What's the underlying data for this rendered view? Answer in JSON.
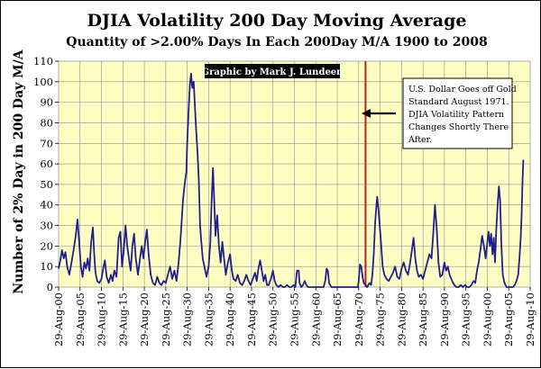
{
  "chart_data": {
    "type": "line",
    "title": "DJIA Volatility 200 Day Moving Average",
    "subtitle": "Quantity of >2.00% Days In Each 200Day M/A 1900 to 2008",
    "ylabel": "Number of 2% Day in 200 Day M/A",
    "xlabel": "",
    "ylim": [
      0,
      110
    ],
    "xlim": [
      1900.0,
      2010.0
    ],
    "grid": true,
    "credit": "Graphic by Mark J. Lundeen",
    "yticks": [
      0,
      10,
      20,
      30,
      40,
      50,
      60,
      70,
      80,
      90,
      100,
      110
    ],
    "xticks": [
      {
        "x": 1900,
        "label": "29-Aug-00"
      },
      {
        "x": 1905,
        "label": "29-Aug-05"
      },
      {
        "x": 1910,
        "label": "29-Aug-10"
      },
      {
        "x": 1915,
        "label": "29-Aug-15"
      },
      {
        "x": 1920,
        "label": "29-Aug-20"
      },
      {
        "x": 1925,
        "label": "29-Aug-25"
      },
      {
        "x": 1930,
        "label": "29-Aug-30"
      },
      {
        "x": 1935,
        "label": "29-Aug-35"
      },
      {
        "x": 1940,
        "label": "29-Aug-40"
      },
      {
        "x": 1945,
        "label": "29-Aug-45"
      },
      {
        "x": 1950,
        "label": "29-Aug-50"
      },
      {
        "x": 1955,
        "label": "29-Aug-55"
      },
      {
        "x": 1960,
        "label": "29-Aug-60"
      },
      {
        "x": 1965,
        "label": "29-Aug-65"
      },
      {
        "x": 1970,
        "label": "29-Aug-70"
      },
      {
        "x": 1975,
        "label": "29-Aug-75"
      },
      {
        "x": 1980,
        "label": "29-Aug-80"
      },
      {
        "x": 1985,
        "label": "29-Aug-85"
      },
      {
        "x": 1990,
        "label": "29-Aug-90"
      },
      {
        "x": 1995,
        "label": "29-Aug-95"
      },
      {
        "x": 2000,
        "label": "29-Aug-00"
      },
      {
        "x": 2005,
        "label": "29-Aug-05"
      },
      {
        "x": 2010,
        "label": "29-Aug-10"
      }
    ],
    "marker_line": {
      "x": 1971.6
    },
    "annotation": {
      "lines": [
        "U.S. Dollar Goes off Gold",
        "Standard August 1971.",
        "DJIA Volatility Pattern",
        "Changes Shortly There",
        "After."
      ]
    },
    "series": [
      {
        "color": "#1f1f8f",
        "points": [
          [
            1900.0,
            9
          ],
          [
            1900.4,
            13
          ],
          [
            1900.8,
            18
          ],
          [
            1901.2,
            14
          ],
          [
            1901.6,
            17
          ],
          [
            1902.0,
            10
          ],
          [
            1902.5,
            6
          ],
          [
            1903.0,
            12
          ],
          [
            1903.5,
            18
          ],
          [
            1904.0,
            25
          ],
          [
            1904.4,
            33
          ],
          [
            1904.8,
            22
          ],
          [
            1905.2,
            10
          ],
          [
            1905.6,
            5
          ],
          [
            1906.0,
            12
          ],
          [
            1906.4,
            9
          ],
          [
            1906.8,
            14
          ],
          [
            1907.2,
            8
          ],
          [
            1907.6,
            22
          ],
          [
            1908.0,
            29
          ],
          [
            1908.3,
            16
          ],
          [
            1908.6,
            7
          ],
          [
            1909.0,
            3
          ],
          [
            1909.5,
            2
          ],
          [
            1910.0,
            4
          ],
          [
            1910.4,
            9
          ],
          [
            1910.8,
            13
          ],
          [
            1911.2,
            5
          ],
          [
            1911.7,
            2
          ],
          [
            1912.2,
            6
          ],
          [
            1912.6,
            3
          ],
          [
            1913.0,
            8
          ],
          [
            1913.5,
            5
          ],
          [
            1914.0,
            24
          ],
          [
            1914.4,
            27
          ],
          [
            1914.8,
            10
          ],
          [
            1915.2,
            18
          ],
          [
            1915.6,
            30
          ],
          [
            1916.0,
            20
          ],
          [
            1916.4,
            14
          ],
          [
            1916.8,
            8
          ],
          [
            1917.2,
            20
          ],
          [
            1917.6,
            26
          ],
          [
            1918.0,
            14
          ],
          [
            1918.5,
            6
          ],
          [
            1919.0,
            14
          ],
          [
            1919.4,
            20
          ],
          [
            1919.8,
            14
          ],
          [
            1920.2,
            22
          ],
          [
            1920.6,
            28
          ],
          [
            1921.0,
            16
          ],
          [
            1921.5,
            6
          ],
          [
            1922.0,
            2
          ],
          [
            1922.5,
            1
          ],
          [
            1923.0,
            5
          ],
          [
            1923.5,
            2
          ],
          [
            1924.0,
            1
          ],
          [
            1924.5,
            3
          ],
          [
            1925.0,
            2
          ],
          [
            1925.5,
            6
          ],
          [
            1926.0,
            10
          ],
          [
            1926.5,
            4
          ],
          [
            1927.0,
            8
          ],
          [
            1927.5,
            3
          ],
          [
            1928.0,
            12
          ],
          [
            1928.4,
            22
          ],
          [
            1928.8,
            35
          ],
          [
            1929.0,
            42
          ],
          [
            1929.2,
            46
          ],
          [
            1929.5,
            52
          ],
          [
            1929.8,
            56
          ],
          [
            1930.0,
            70
          ],
          [
            1930.3,
            85
          ],
          [
            1930.6,
            98
          ],
          [
            1930.9,
            104
          ],
          [
            1931.2,
            97
          ],
          [
            1931.5,
            100
          ],
          [
            1931.8,
            88
          ],
          [
            1932.1,
            76
          ],
          [
            1932.4,
            66
          ],
          [
            1932.7,
            52
          ],
          [
            1933.0,
            30
          ],
          [
            1933.3,
            22
          ],
          [
            1933.6,
            14
          ],
          [
            1934.0,
            10
          ],
          [
            1934.5,
            5
          ],
          [
            1935.0,
            10
          ],
          [
            1935.4,
            22
          ],
          [
            1935.7,
            42
          ],
          [
            1936.0,
            58
          ],
          [
            1936.3,
            42
          ],
          [
            1936.6,
            25
          ],
          [
            1937.0,
            35
          ],
          [
            1937.4,
            20
          ],
          [
            1937.8,
            12
          ],
          [
            1938.2,
            22
          ],
          [
            1938.6,
            14
          ],
          [
            1939.0,
            6
          ],
          [
            1939.5,
            12
          ],
          [
            1940.0,
            16
          ],
          [
            1940.4,
            8
          ],
          [
            1940.8,
            4
          ],
          [
            1941.3,
            3
          ],
          [
            1941.8,
            6
          ],
          [
            1942.3,
            2
          ],
          [
            1942.8,
            1
          ],
          [
            1943.3,
            3
          ],
          [
            1943.8,
            6
          ],
          [
            1944.3,
            3
          ],
          [
            1944.8,
            1
          ],
          [
            1945.3,
            4
          ],
          [
            1945.8,
            7
          ],
          [
            1946.2,
            3
          ],
          [
            1946.6,
            9
          ],
          [
            1947.0,
            13
          ],
          [
            1947.4,
            8
          ],
          [
            1947.8,
            3
          ],
          [
            1948.2,
            6
          ],
          [
            1948.6,
            1
          ],
          [
            1949.0,
            1
          ],
          [
            1949.5,
            4
          ],
          [
            1950.0,
            8
          ],
          [
            1950.4,
            3
          ],
          [
            1950.8,
            1
          ],
          [
            1951.3,
            0
          ],
          [
            1951.8,
            1
          ],
          [
            1952.3,
            0
          ],
          [
            1952.8,
            0
          ],
          [
            1953.3,
            1
          ],
          [
            1953.8,
            0
          ],
          [
            1954.3,
            0
          ],
          [
            1954.8,
            1
          ],
          [
            1955.2,
            0
          ],
          [
            1955.6,
            8
          ],
          [
            1956.0,
            8
          ],
          [
            1956.2,
            2
          ],
          [
            1956.6,
            0
          ],
          [
            1957.0,
            1
          ],
          [
            1957.4,
            3
          ],
          [
            1957.8,
            1
          ],
          [
            1958.2,
            0
          ],
          [
            1958.8,
            0
          ],
          [
            1959.3,
            0
          ],
          [
            1959.8,
            0
          ],
          [
            1960.3,
            0
          ],
          [
            1960.8,
            0
          ],
          [
            1961.3,
            0
          ],
          [
            1961.8,
            0
          ],
          [
            1962.2,
            3
          ],
          [
            1962.5,
            9
          ],
          [
            1962.8,
            8
          ],
          [
            1963.1,
            2
          ],
          [
            1963.6,
            0
          ],
          [
            1964.2,
            0
          ],
          [
            1964.8,
            0
          ],
          [
            1965.3,
            0
          ],
          [
            1965.8,
            0
          ],
          [
            1966.3,
            0
          ],
          [
            1966.8,
            0
          ],
          [
            1967.3,
            0
          ],
          [
            1967.8,
            0
          ],
          [
            1968.3,
            0
          ],
          [
            1968.8,
            0
          ],
          [
            1969.3,
            0
          ],
          [
            1969.8,
            0
          ],
          [
            1970.0,
            3
          ],
          [
            1970.3,
            11
          ],
          [
            1970.6,
            10
          ],
          [
            1970.9,
            5
          ],
          [
            1971.2,
            2
          ],
          [
            1971.6,
            1
          ],
          [
            1972.0,
            0
          ],
          [
            1972.5,
            2
          ],
          [
            1972.9,
            1
          ],
          [
            1973.2,
            6
          ],
          [
            1973.5,
            16
          ],
          [
            1973.8,
            30
          ],
          [
            1974.0,
            36
          ],
          [
            1974.3,
            44
          ],
          [
            1974.6,
            38
          ],
          [
            1974.9,
            30
          ],
          [
            1975.2,
            22
          ],
          [
            1975.6,
            10
          ],
          [
            1976.0,
            6
          ],
          [
            1976.5,
            4
          ],
          [
            1977.0,
            3
          ],
          [
            1977.5,
            5
          ],
          [
            1978.0,
            7
          ],
          [
            1978.5,
            10
          ],
          [
            1979.0,
            5
          ],
          [
            1979.5,
            4
          ],
          [
            1980.0,
            9
          ],
          [
            1980.5,
            12
          ],
          [
            1981.0,
            8
          ],
          [
            1981.5,
            6
          ],
          [
            1982.0,
            12
          ],
          [
            1982.4,
            18
          ],
          [
            1982.8,
            24
          ],
          [
            1983.2,
            14
          ],
          [
            1983.6,
            8
          ],
          [
            1984.0,
            5
          ],
          [
            1984.5,
            6
          ],
          [
            1985.0,
            4
          ],
          [
            1985.5,
            8
          ],
          [
            1986.0,
            12
          ],
          [
            1986.5,
            16
          ],
          [
            1987.0,
            14
          ],
          [
            1987.4,
            26
          ],
          [
            1987.8,
            40
          ],
          [
            1988.2,
            28
          ],
          [
            1988.6,
            12
          ],
          [
            1989.0,
            5
          ],
          [
            1989.5,
            6
          ],
          [
            1990.0,
            12
          ],
          [
            1990.4,
            8
          ],
          [
            1990.8,
            10
          ],
          [
            1991.2,
            6
          ],
          [
            1991.8,
            3
          ],
          [
            1992.3,
            1
          ],
          [
            1992.8,
            0
          ],
          [
            1993.3,
            0
          ],
          [
            1993.8,
            1
          ],
          [
            1994.3,
            0
          ],
          [
            1994.8,
            1
          ],
          [
            1995.3,
            0
          ],
          [
            1995.8,
            0
          ],
          [
            1996.3,
            1
          ],
          [
            1996.8,
            3
          ],
          [
            1997.2,
            2
          ],
          [
            1997.6,
            8
          ],
          [
            1998.0,
            12
          ],
          [
            1998.4,
            18
          ],
          [
            1998.8,
            25
          ],
          [
            1999.2,
            20
          ],
          [
            1999.6,
            14
          ],
          [
            2000.0,
            22
          ],
          [
            2000.3,
            27
          ],
          [
            2000.6,
            20
          ],
          [
            2000.9,
            26
          ],
          [
            2001.2,
            16
          ],
          [
            2001.5,
            24
          ],
          [
            2001.8,
            12
          ],
          [
            2002.1,
            28
          ],
          [
            2002.4,
            40
          ],
          [
            2002.7,
            49
          ],
          [
            2003.0,
            42
          ],
          [
            2003.3,
            20
          ],
          [
            2003.6,
            6
          ],
          [
            2004.0,
            2
          ],
          [
            2004.5,
            0
          ],
          [
            2005.0,
            0
          ],
          [
            2005.5,
            0
          ],
          [
            2006.0,
            0
          ],
          [
            2006.4,
            1
          ],
          [
            2006.8,
            3
          ],
          [
            2007.2,
            6
          ],
          [
            2007.5,
            14
          ],
          [
            2007.8,
            24
          ],
          [
            2008.0,
            35
          ],
          [
            2008.2,
            50
          ],
          [
            2008.4,
            62
          ]
        ]
      }
    ]
  }
}
